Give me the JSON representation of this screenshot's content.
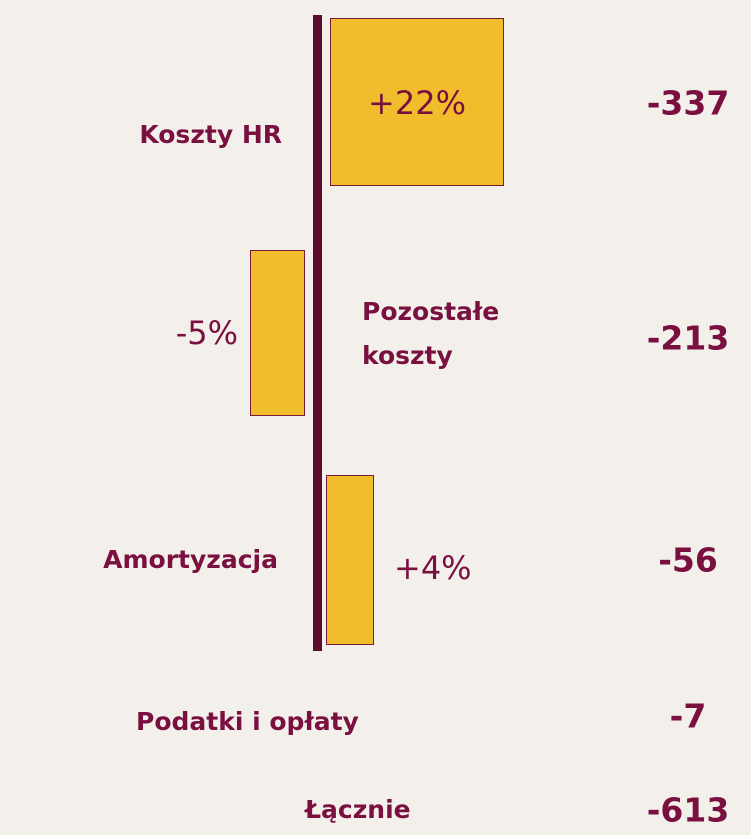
{
  "categories": [
    "Koszty HR",
    "Pozostałe koszty",
    "Amortyzacja",
    "Podatki i opłaty",
    "Łącznie"
  ],
  "values": [
    22,
    -5,
    4,
    null,
    null
  ],
  "value_labels": [
    "+22%",
    "-5%",
    "+4%",
    null,
    null
  ],
  "amounts": [
    -337,
    -213,
    -56,
    -7,
    -613
  ]
}
